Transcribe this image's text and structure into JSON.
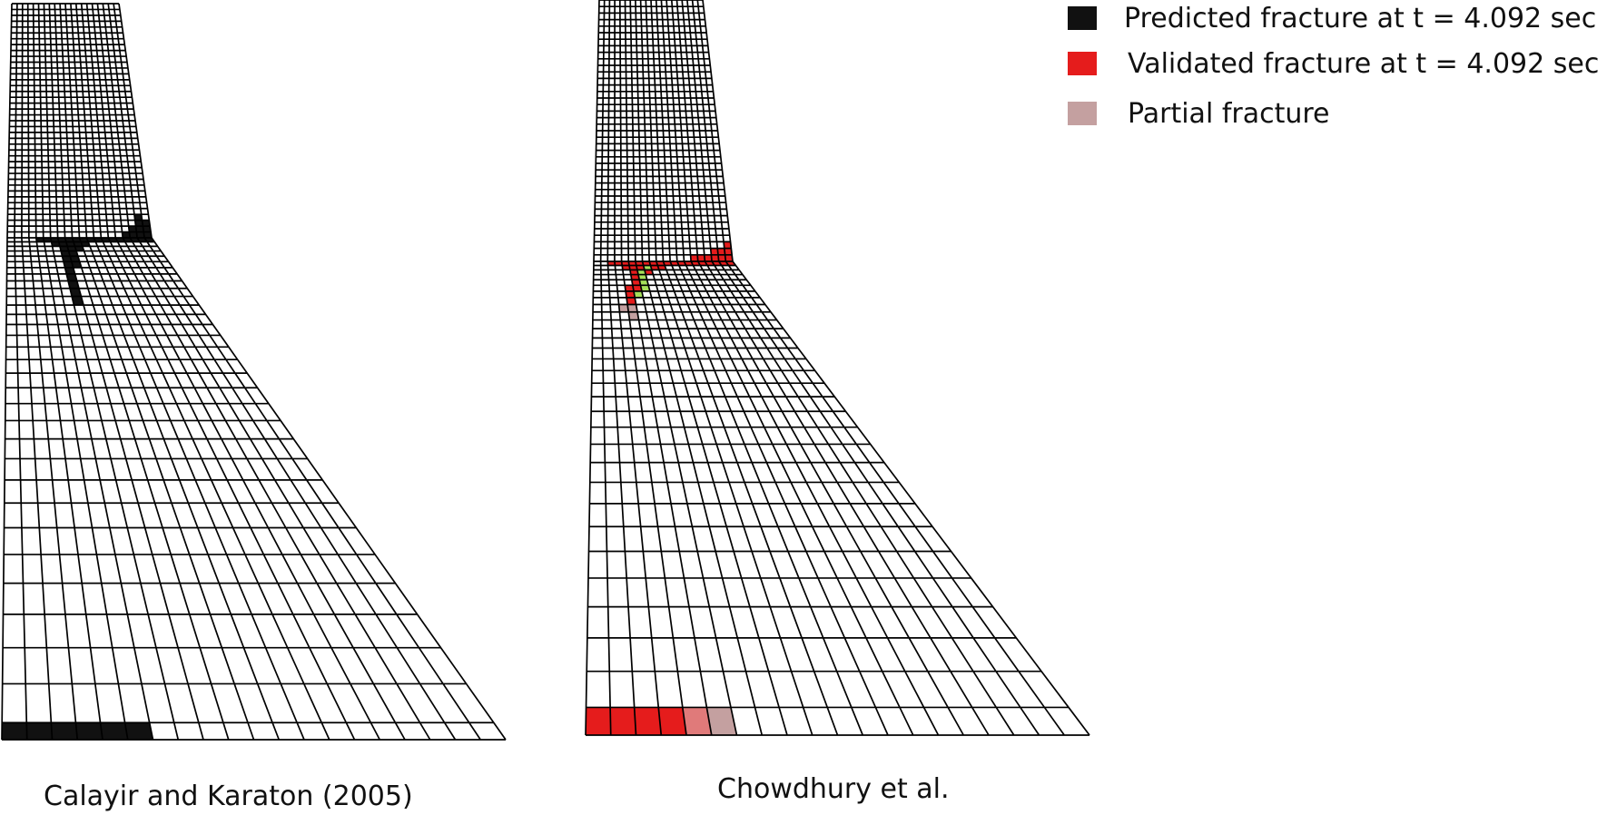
{
  "colors": {
    "predicted": "#111111",
    "validated": "#e51c1c",
    "partial": "#c4a0a0",
    "green": "#a6e05a",
    "grid": "#000000"
  },
  "legend": [
    {
      "label": "Predicted fracture at t = 4.092 sec",
      "color": "#111111",
      "icon": "black-square-swatch"
    },
    {
      "label": "Validated fracture at t = 4.092 sec",
      "color": "#e51c1c",
      "icon": "red-square-swatch"
    },
    {
      "label": "Partial fracture",
      "color": "#c4a0a0",
      "icon": "pink-square-swatch"
    }
  ],
  "panels": [
    {
      "caption": "Calayir and Karaton (2005)"
    },
    {
      "caption": "Chowdhury et al."
    }
  ]
}
